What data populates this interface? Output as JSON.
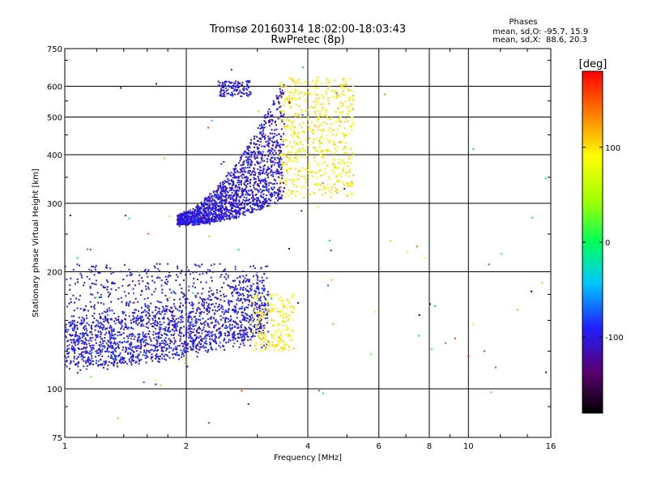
{
  "chart_data": {
    "type": "scatter",
    "title": "Tromsø 20160314 18:02:00-18:03:43",
    "subtitle": "RwPretec (8p)",
    "xlabel": "Frequency [MHz]",
    "ylabel": "Stationary phase Virtual Height [km]",
    "x_scale": "log",
    "y_scale": "log",
    "xlim": [
      1,
      16
    ],
    "ylim": [
      75,
      750
    ],
    "x_ticks": [
      1,
      2,
      4,
      6,
      8,
      10,
      16
    ],
    "x_tick_labels": [
      "1",
      "2",
      "4",
      "6",
      "8",
      "10",
      "16"
    ],
    "y_ticks": [
      75,
      100,
      200,
      300,
      400,
      500,
      600,
      750
    ],
    "y_tick_labels": [
      "75",
      "100",
      "200",
      "300",
      "400",
      "500",
      "600",
      "750"
    ],
    "grid": true,
    "phase_info": {
      "heading": "Phases",
      "line_o": "mean, sd,O: -95.7, 15.9",
      "line_x": "mean, sd,X:  88.6, 20.3"
    },
    "colorbar": {
      "label": "[deg]",
      "range": [
        -180,
        180
      ],
      "ticks": [
        100,
        0,
        -100
      ],
      "tick_labels": [
        "100",
        "0",
        "-100"
      ]
    },
    "clusters": [
      {
        "region": "E-layer trace (O-mode)",
        "x_range": [
          1.0,
          3.2
        ],
        "y_start": [
          115,
          150
        ],
        "y_end": [
          140,
          200
        ],
        "phase_mean": -95,
        "count": 1400,
        "spread": 0.09
      },
      {
        "region": "E-layer diffuse (O-mode)",
        "x_range": [
          1.0,
          3.2
        ],
        "y_range": [
          125,
          210
        ],
        "phase_mean": -100,
        "count": 700
      },
      {
        "region": "E-layer (X-mode)",
        "x_range": [
          2.9,
          3.7
        ],
        "y_range": [
          125,
          175
        ],
        "phase_mean": 95,
        "count": 220
      },
      {
        "region": "F-layer trace (O-mode)",
        "x_range": [
          1.9,
          3.5
        ],
        "y_start": [
          265,
          280
        ],
        "y_end": [
          310,
          630
        ],
        "phase_mean": -100,
        "count": 1700
      },
      {
        "region": "F-layer cusp (O-mode)",
        "x_range": [
          2.4,
          2.9
        ],
        "y_range": [
          565,
          620
        ],
        "phase_mean": -100,
        "count": 120
      },
      {
        "region": "F-layer (X-mode)",
        "x_range": [
          3.4,
          5.2
        ],
        "y_range": [
          310,
          630
        ],
        "phase_mean": 95,
        "count": 600
      },
      {
        "region": "Sparse noise",
        "x_range": [
          1.0,
          16.0
        ],
        "y_range": [
          80,
          700
        ],
        "phase_mean": 0,
        "count": 100
      }
    ]
  }
}
